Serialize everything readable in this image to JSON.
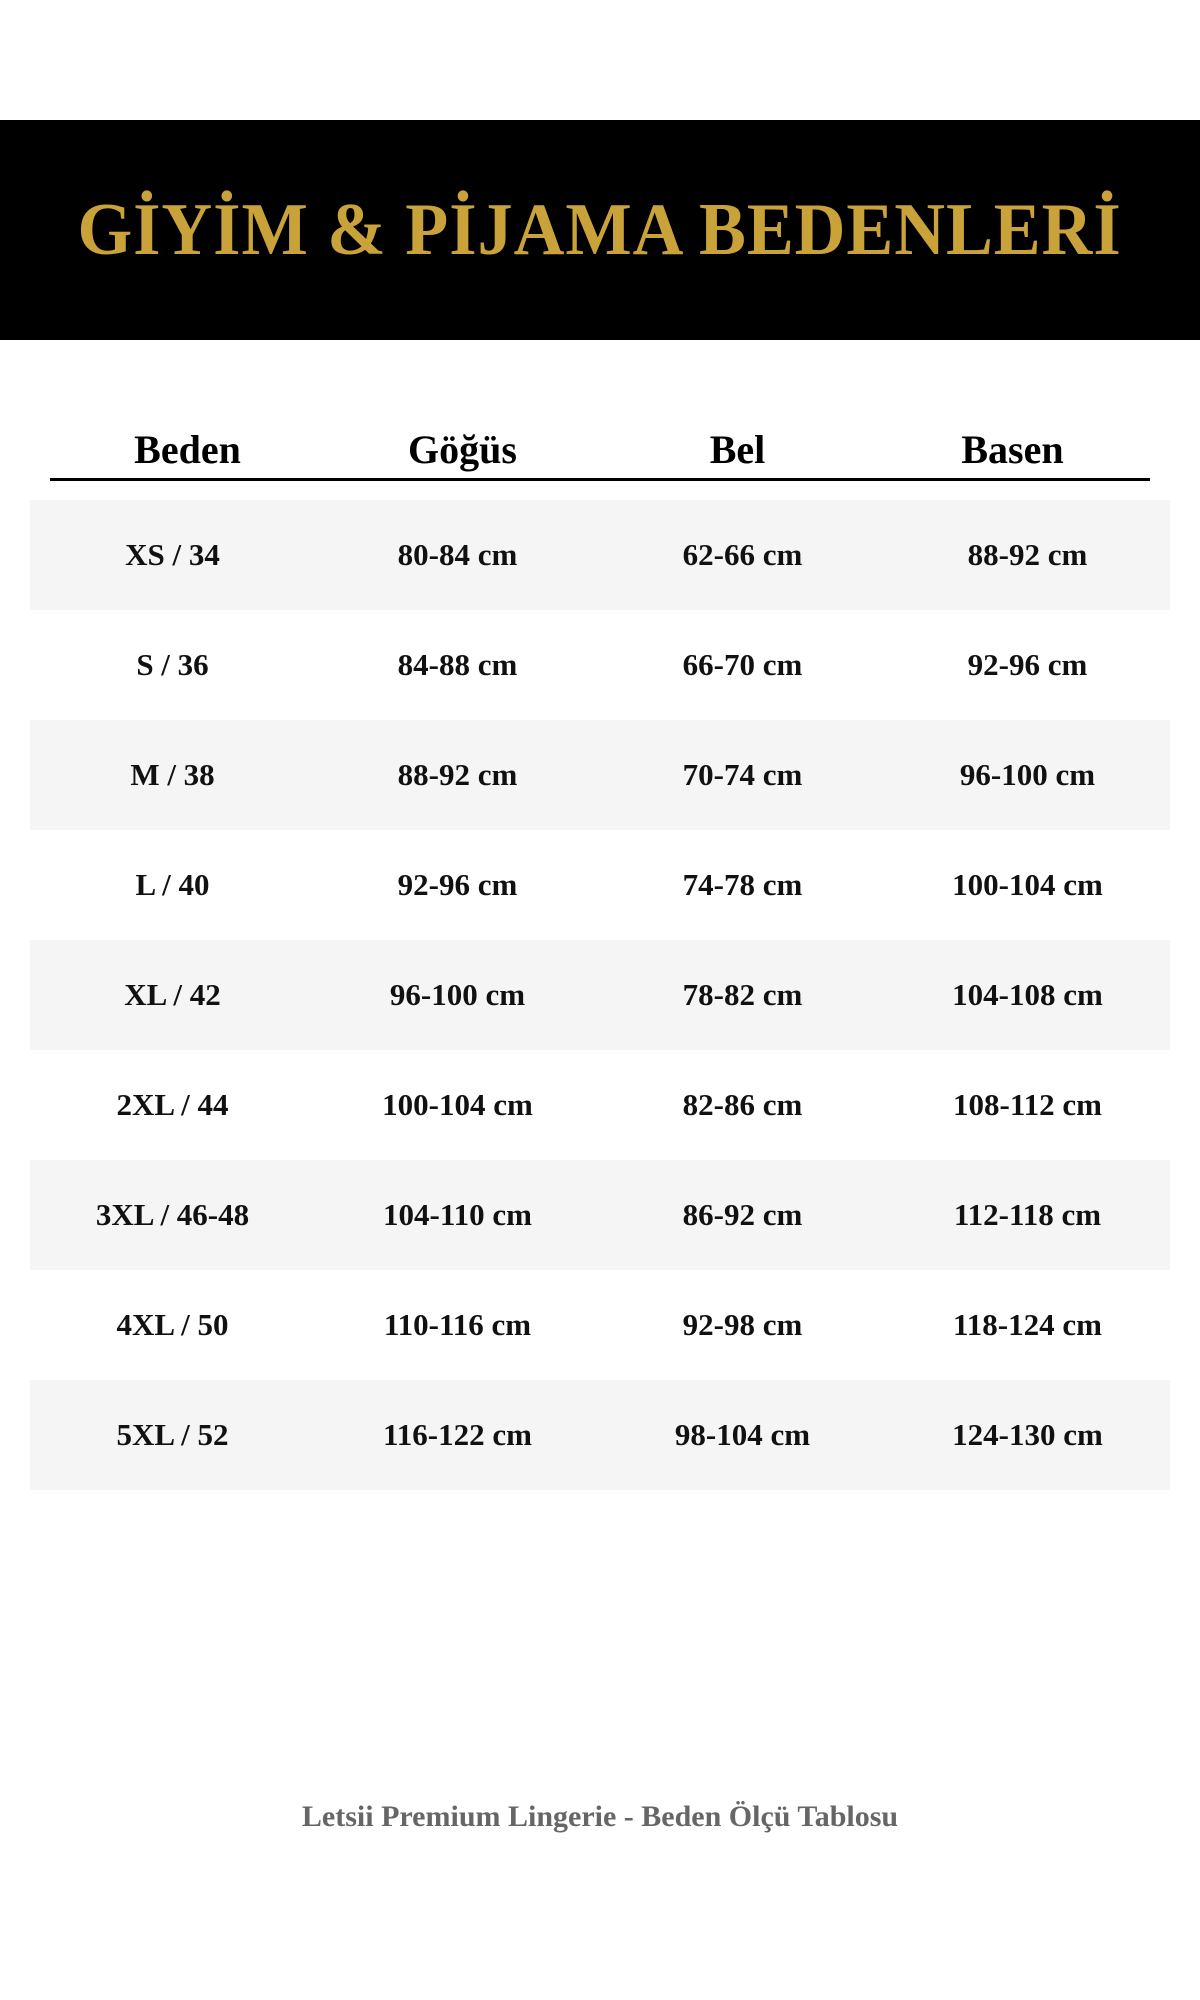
{
  "title": "GİYİM & PİJAMA BEDENLERİ",
  "colors": {
    "banner_bg": "#000000",
    "title": "#c9a33a",
    "row_shade": "#f5f5f5",
    "footer": "#666666"
  },
  "columns": [
    "Beden",
    "Göğüs",
    "Bel",
    "Basen"
  ],
  "rows": [
    [
      "XS / 34",
      "80-84 cm",
      "62-66 cm",
      "88-92 cm"
    ],
    [
      "S / 36",
      "84-88 cm",
      "66-70 cm",
      "92-96 cm"
    ],
    [
      "M / 38",
      "88-92 cm",
      "70-74 cm",
      "96-100 cm"
    ],
    [
      "L / 40",
      "92-96 cm",
      "74-78 cm",
      "100-104 cm"
    ],
    [
      "XL / 42",
      "96-100 cm",
      "78-82 cm",
      "104-108 cm"
    ],
    [
      "2XL / 44",
      "100-104 cm",
      "82-86 cm",
      "108-112 cm"
    ],
    [
      "3XL / 46-48",
      "104-110 cm",
      "86-92 cm",
      "112-118 cm"
    ],
    [
      "4XL / 50",
      "110-116 cm",
      "92-98 cm",
      "118-124 cm"
    ],
    [
      "5XL / 52",
      "116-122 cm",
      "98-104 cm",
      "124-130 cm"
    ]
  ],
  "footer": "Letsii Premium Lingerie - Beden Ölçü Tablosu"
}
